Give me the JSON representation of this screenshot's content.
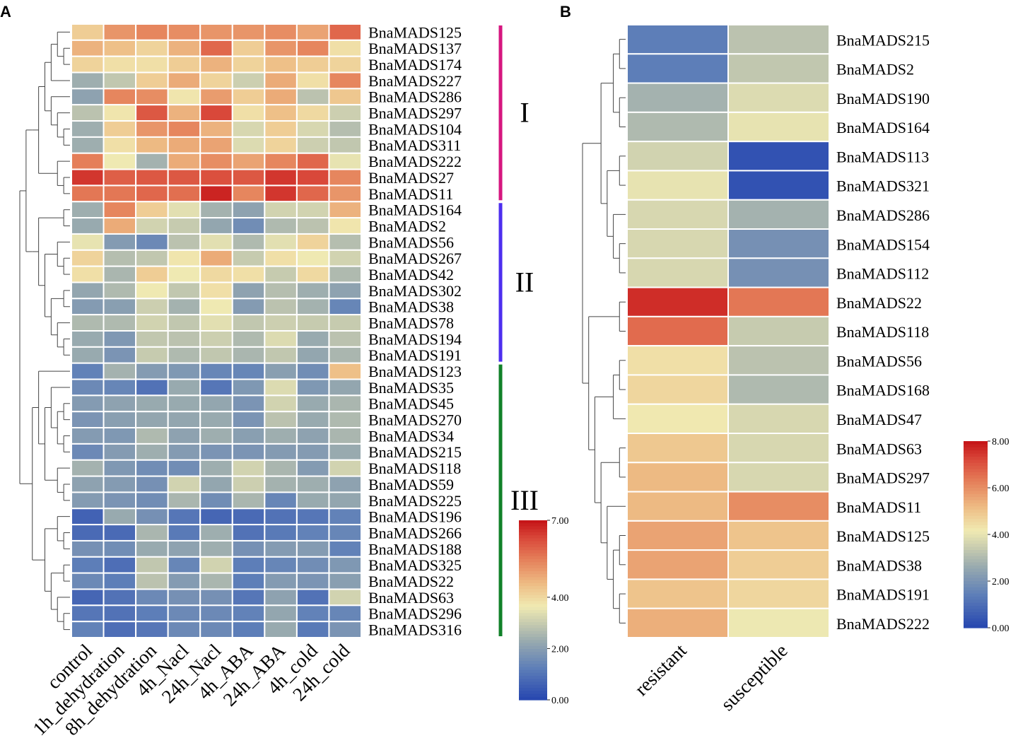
{
  "figure": {
    "panels": [
      "A",
      "B"
    ]
  },
  "chart_data": [
    {
      "panel": "A",
      "type": "heatmap",
      "title": "",
      "columns": [
        "control",
        "1h_dehydration",
        "8h_dehydration",
        "4h_Nacl",
        "24h_Nacl",
        "4h_ABA",
        "24h_ABA",
        "4h_cold",
        "24h_cold"
      ],
      "rows": [
        "BnaMADS125",
        "BnaMADS137",
        "BnaMADS174",
        "BnaMADS227",
        "BnaMADS286",
        "BnaMADS297",
        "BnaMADS104",
        "BnaMADS311",
        "BnaMADS222",
        "BnaMADS27",
        "BnaMADS11",
        "BnaMADS164",
        "BnaMADS2",
        "BnaMADS56",
        "BnaMADS267",
        "BnaMADS42",
        "BnaMADS302",
        "BnaMADS38",
        "BnaMADS78",
        "BnaMADS194",
        "BnaMADS191",
        "BnaMADS123",
        "BnaMADS35",
        "BnaMADS45",
        "BnaMADS270",
        "BnaMADS34",
        "BnaMADS215",
        "BnaMADS118",
        "BnaMADS59",
        "BnaMADS225",
        "BnaMADS196",
        "BnaMADS266",
        "BnaMADS188",
        "BnaMADS325",
        "BnaMADS22",
        "BnaMADS63",
        "BnaMADS296",
        "BnaMADS316"
      ],
      "values": [
        [
          4.6,
          5.4,
          5.6,
          5.5,
          5.4,
          5.4,
          5.5,
          5.2,
          6.0
        ],
        [
          5.0,
          4.8,
          4.5,
          5.0,
          6.0,
          4.6,
          5.4,
          5.6,
          4.3
        ],
        [
          4.5,
          4.3,
          4.3,
          4.6,
          5.0,
          4.5,
          4.8,
          4.6,
          4.5
        ],
        [
          2.7,
          3.3,
          4.6,
          5.1,
          4.5,
          3.5,
          5.1,
          4.3,
          5.6
        ],
        [
          2.4,
          5.6,
          5.5,
          4.2,
          5.3,
          4.6,
          5.1,
          3.2,
          4.7
        ],
        [
          3.2,
          4.2,
          6.2,
          5.0,
          6.4,
          4.3,
          4.8,
          4.4,
          3.5
        ],
        [
          2.7,
          4.6,
          5.4,
          5.6,
          5.0,
          3.7,
          4.6,
          3.7,
          3.1
        ],
        [
          2.7,
          4.3,
          4.9,
          5.1,
          5.2,
          3.8,
          4.5,
          3.5,
          3.3
        ],
        [
          5.7,
          4.1,
          2.8,
          5.1,
          5.5,
          5.2,
          5.6,
          6.0,
          4.0
        ],
        [
          6.6,
          6.1,
          6.2,
          6.2,
          6.3,
          6.2,
          6.6,
          6.4,
          5.6
        ],
        [
          5.8,
          5.8,
          6.0,
          5.9,
          6.8,
          5.6,
          6.6,
          6.0,
          5.4
        ],
        [
          2.7,
          5.6,
          4.6,
          3.9,
          2.8,
          2.4,
          3.6,
          3.6,
          5.0
        ],
        [
          2.6,
          5.1,
          3.6,
          3.4,
          2.5,
          1.8,
          3.0,
          3.2,
          4.2
        ],
        [
          4.0,
          2.2,
          1.7,
          3.2,
          3.9,
          3.0,
          3.9,
          4.5,
          3.1
        ],
        [
          4.5,
          3.1,
          3.3,
          4.2,
          5.1,
          3.4,
          4.3,
          4.1,
          3.6
        ],
        [
          4.3,
          2.9,
          4.6,
          4.1,
          4.4,
          4.3,
          3.4,
          4.4,
          3.0
        ],
        [
          2.5,
          3.0,
          4.1,
          3.3,
          4.3,
          2.4,
          3.1,
          2.7,
          2.4
        ],
        [
          2.2,
          2.3,
          3.5,
          2.8,
          4.1,
          2.2,
          3.2,
          2.8,
          1.6
        ],
        [
          3.0,
          3.0,
          3.6,
          3.3,
          3.9,
          3.3,
          3.5,
          3.4,
          3.4
        ],
        [
          2.6,
          2.1,
          3.3,
          3.2,
          3.5,
          3.0,
          3.8,
          2.6,
          3.2
        ],
        [
          2.6,
          2.0,
          3.4,
          3.0,
          3.3,
          2.9,
          3.3,
          2.5,
          2.9
        ],
        [
          1.5,
          2.8,
          2.2,
          2.1,
          1.6,
          1.6,
          2.3,
          1.8,
          4.8
        ],
        [
          1.7,
          1.6,
          1.1,
          2.6,
          1.2,
          2.1,
          3.8,
          2.1,
          2.5
        ],
        [
          2.2,
          2.4,
          2.6,
          2.6,
          2.5,
          2.0,
          3.6,
          2.6,
          2.9
        ],
        [
          2.0,
          2.3,
          2.5,
          2.5,
          2.6,
          2.0,
          3.2,
          2.6,
          3.0
        ],
        [
          2.2,
          2.1,
          3.0,
          2.4,
          2.7,
          2.3,
          2.7,
          2.4,
          2.9
        ],
        [
          1.7,
          2.2,
          2.7,
          2.2,
          2.0,
          2.0,
          2.2,
          2.2,
          2.6
        ],
        [
          2.8,
          2.1,
          1.8,
          1.8,
          2.7,
          3.6,
          2.9,
          2.2,
          3.6
        ],
        [
          2.4,
          2.2,
          1.9,
          3.6,
          2.5,
          3.5,
          2.8,
          2.7,
          2.4
        ],
        [
          2.2,
          2.0,
          1.8,
          2.9,
          1.8,
          2.9,
          1.6,
          2.6,
          2.5
        ],
        [
          0.7,
          2.6,
          1.9,
          1.2,
          0.8,
          0.9,
          1.1,
          1.2,
          1.5
        ],
        [
          0.9,
          0.9,
          2.9,
          1.3,
          2.7,
          1.1,
          1.3,
          1.5,
          1.6
        ],
        [
          1.9,
          1.8,
          2.6,
          2.4,
          2.7,
          1.9,
          2.2,
          2.2,
          1.5
        ],
        [
          1.4,
          1.0,
          3.3,
          1.6,
          3.6,
          1.4,
          1.6,
          1.8,
          2.1
        ],
        [
          1.7,
          1.4,
          3.2,
          2.2,
          2.9,
          1.4,
          2.2,
          2.0,
          2.3
        ],
        [
          0.8,
          1.1,
          1.7,
          1.9,
          1.9,
          1.2,
          2.4,
          1.1,
          3.6
        ],
        [
          1.2,
          1.1,
          1.4,
          1.7,
          1.7,
          1.5,
          2.5,
          1.5,
          1.6
        ],
        [
          1.5,
          1.0,
          1.2,
          1.7,
          1.7,
          1.4,
          2.6,
          1.3,
          2.0
        ]
      ],
      "groups": [
        {
          "label": "I",
          "first_row": 0,
          "last_row": 10,
          "color": "#d6167f"
        },
        {
          "label": "II",
          "first_row": 11,
          "last_row": 20,
          "color": "#4d2eef"
        },
        {
          "label": "III",
          "first_row": 21,
          "last_row": 37,
          "color": "#118129"
        }
      ],
      "colorbar": {
        "min": 0.0,
        "mid": 4.0,
        "max": 7.0,
        "ticks": [
          "0.00",
          "2.00",
          "4.00",
          "7.00"
        ],
        "tick_values": [
          0,
          2,
          4,
          7
        ]
      },
      "dendrogram": {
        "tree": [
          [
            [
              [
                [
                  [
                    [
                      0,
                      [
                        1,
                        2
                      ]
                    ],
                    3
                  ],
                  [
                    4,
                    [
                      5,
                      [
                        6,
                        7
                      ]
                    ]
                  ]
                ],
                [
                  8,
                  [
                    9,
                    10
                  ]
                ]
              ]
            ],
            [
              [
                [
                  11,
                  12
                ],
                [
                  [
                    13,
                    [
                      14,
                      15
                    ]
                  ],
                  [
                    [
                      16,
                      17
                    ],
                    [
                      18,
                      [
                        19,
                        20
                      ]
                    ]
                  ]
                ]
              ]
            ]
          ],
          [
            [
              21,
              [
                [
                  22,
                  [
                    [
                      23,
                      24
                    ],
                    [
                      25,
                      26
                    ]
                  ]
                ],
                [
                  27,
                  [
                    28,
                    29
                  ]
                ]
              ]
            ],
            [
              [
                30,
                [
                  31,
                  32
                ]
              ],
              [
                [
                  33,
                  34
                ],
                [
                  35,
                  [
                    36,
                    37
                  ]
                ]
              ]
            ]
          ]
        ]
      }
    },
    {
      "panel": "B",
      "type": "heatmap",
      "title": "",
      "columns": [
        "resistant",
        "susceptible"
      ],
      "rows": [
        "BnaMADS215",
        "BnaMADS2",
        "BnaMADS190",
        "BnaMADS164",
        "BnaMADS113",
        "BnaMADS321",
        "BnaMADS286",
        "BnaMADS154",
        "BnaMADS112",
        "BnaMADS22",
        "BnaMADS118",
        "BnaMADS56",
        "BnaMADS168",
        "BnaMADS47",
        "BnaMADS63",
        "BnaMADS297",
        "BnaMADS11",
        "BnaMADS125",
        "BnaMADS38",
        "BnaMADS191",
        "BnaMADS222"
      ],
      "values": [
        [
          1.4,
          3.2
        ],
        [
          1.4,
          3.3
        ],
        [
          2.8,
          3.8
        ],
        [
          3.0,
          4.0
        ],
        [
          3.6,
          0.3
        ],
        [
          4.0,
          0.3
        ],
        [
          3.7,
          2.8
        ],
        [
          3.7,
          1.9
        ],
        [
          3.7,
          1.9
        ],
        [
          7.6,
          6.4
        ],
        [
          6.6,
          3.4
        ],
        [
          4.4,
          3.2
        ],
        [
          4.6,
          3.0
        ],
        [
          4.2,
          3.7
        ],
        [
          4.9,
          3.7
        ],
        [
          5.2,
          3.7
        ],
        [
          5.2,
          6.0
        ],
        [
          5.6,
          5.0
        ],
        [
          5.6,
          4.8
        ],
        [
          5.0,
          4.6
        ],
        [
          5.4,
          4.1
        ]
      ],
      "colorbar": {
        "min": 0.0,
        "mid": 4.0,
        "max": 8.0,
        "ticks": [
          "0.00",
          "2.00",
          "4.00",
          "6.00",
          "8.00"
        ],
        "tick_values": [
          0,
          2,
          4,
          6,
          8
        ]
      },
      "dendrogram": {
        "tree": [
          [
            [
              [
                0,
                1
              ],
              [
                2,
                3
              ]
            ],
            [
              [
                4,
                5
              ],
              [
                6,
                [
                  7,
                  8
                ]
              ]
            ]
          ],
          [
            [
              9,
              10
            ],
            [
              [
                [
                  11,
                  12
                ],
                13
              ],
              [
                [
                  14,
                  15
                ],
                [
                  16,
                  [
                    [
                      17,
                      18
                    ],
                    [
                      19,
                      20
                    ]
                  ]
                ]
              ]
            ]
          ]
        ]
      }
    }
  ]
}
